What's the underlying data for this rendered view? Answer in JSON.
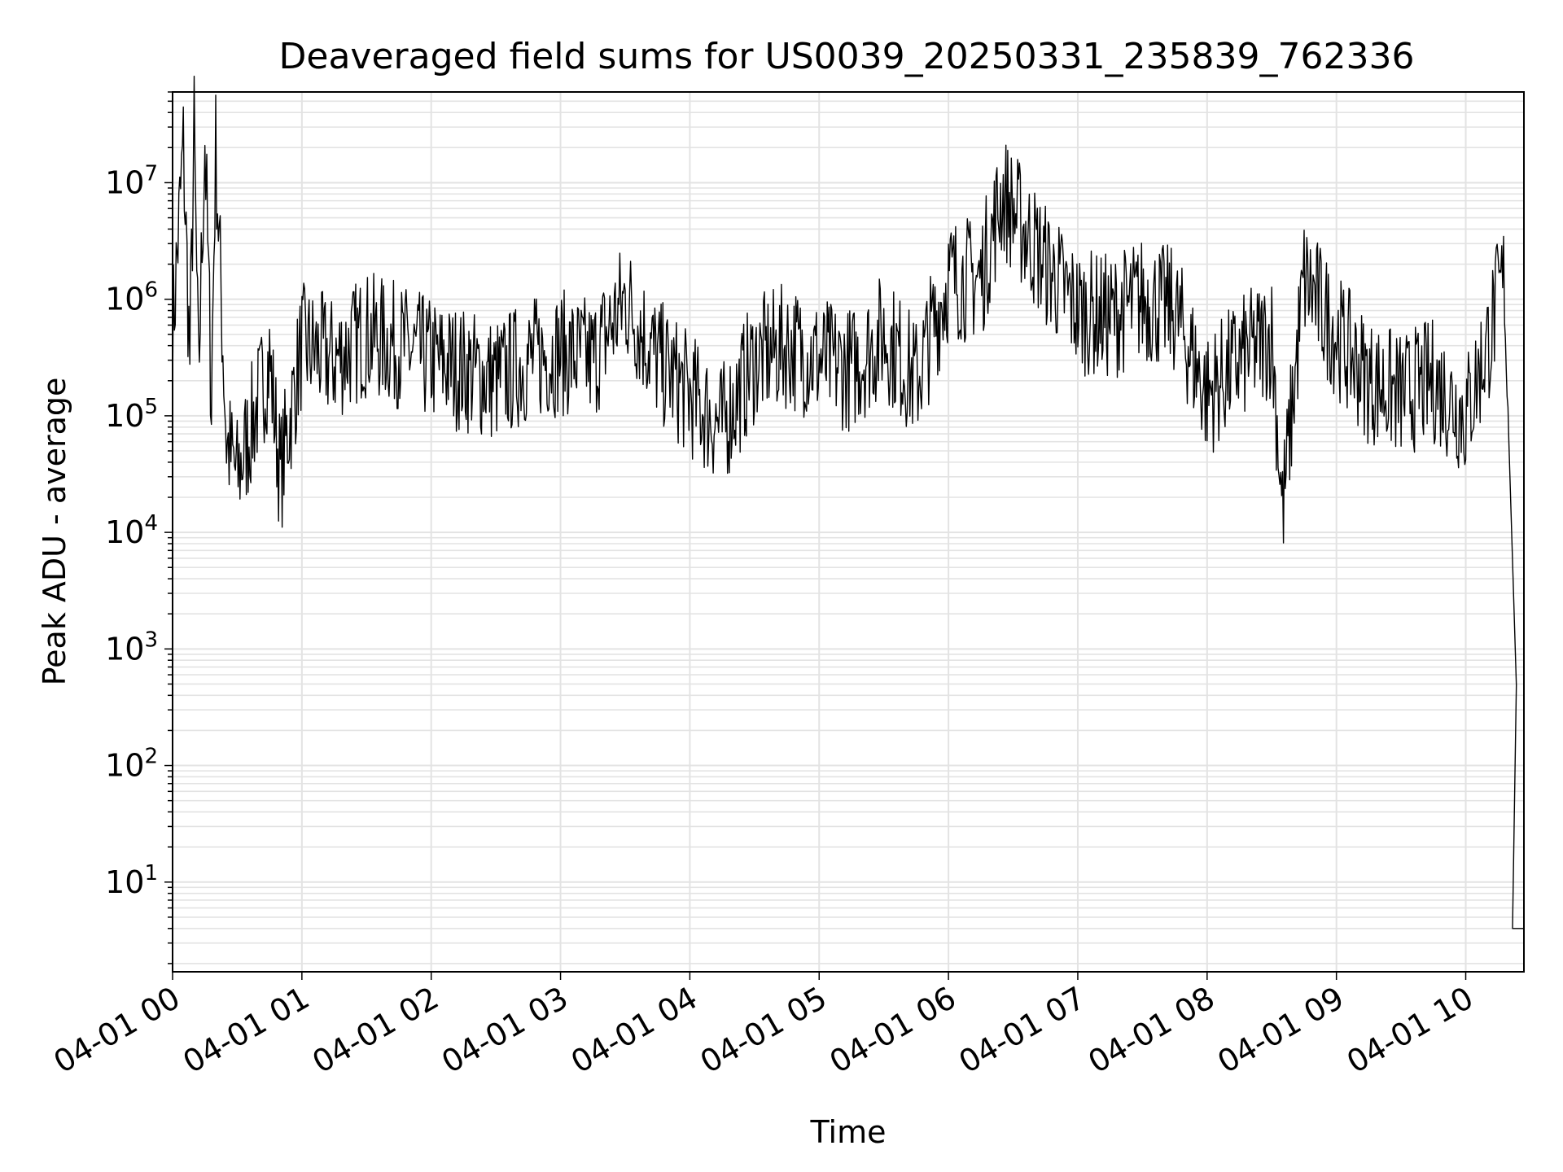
{
  "chart_data": {
    "type": "line",
    "title": "Deaveraged field sums for US0039_20250331_235839_762336",
    "xlabel": "Time",
    "ylabel": "Peak ADU - average",
    "yscale": "log",
    "ylim": [
      1.7,
      60000000
    ],
    "xlim": [
      "2025-04-01 00:00",
      "2025-04-01 10:27"
    ],
    "x_ticks": [
      "04-01 00",
      "04-01 01",
      "04-01 02",
      "04-01 03",
      "04-01 04",
      "04-01 05",
      "04-01 06",
      "04-01 07",
      "04-01 08",
      "04-01 09",
      "04-01 10"
    ],
    "y_ticks": [
      {
        "base": "10",
        "exp": "1",
        "value": 10
      },
      {
        "base": "10",
        "exp": "2",
        "value": 100
      },
      {
        "base": "10",
        "exp": "3",
        "value": 1000
      },
      {
        "base": "10",
        "exp": "4",
        "value": 10000
      },
      {
        "base": "10",
        "exp": "5",
        "value": 100000
      },
      {
        "base": "10",
        "exp": "6",
        "value": 1000000
      },
      {
        "base": "10",
        "exp": "7",
        "value": 10000000
      }
    ],
    "grid": true,
    "line_color": "#000000",
    "grid_color": "#e3e3e3",
    "series": [
      {
        "x": [
          "2025-04-01 00:00",
          "2025-04-01 00:05",
          "2025-04-01 00:08",
          "2025-04-01 00:10",
          "2025-04-01 00:12",
          "2025-04-01 00:15",
          "2025-04-01 00:18",
          "2025-04-01 00:20",
          "2025-04-01 00:25",
          "2025-04-01 00:30",
          "2025-04-01 00:38",
          "2025-04-01 00:45",
          "2025-04-01 00:50",
          "2025-04-01 01:00",
          "2025-04-01 01:15",
          "2025-04-01 01:30",
          "2025-04-01 01:45",
          "2025-04-01 02:00",
          "2025-04-01 02:15",
          "2025-04-01 02:30",
          "2025-04-01 02:45",
          "2025-04-01 03:00",
          "2025-04-01 03:15",
          "2025-04-01 03:30",
          "2025-04-01 03:45",
          "2025-04-01 04:00",
          "2025-04-01 04:15",
          "2025-04-01 04:30",
          "2025-04-01 04:45",
          "2025-04-01 05:00",
          "2025-04-01 05:15",
          "2025-04-01 05:30",
          "2025-04-01 05:45",
          "2025-04-01 06:00",
          "2025-04-01 06:15",
          "2025-04-01 06:25",
          "2025-04-01 06:45",
          "2025-04-01 07:00",
          "2025-04-01 07:15",
          "2025-04-01 07:30",
          "2025-04-01 07:45",
          "2025-04-01 08:00",
          "2025-04-01 08:15",
          "2025-04-01 08:30",
          "2025-04-01 08:35",
          "2025-04-01 08:45",
          "2025-04-01 09:00",
          "2025-04-01 09:15",
          "2025-04-01 09:30",
          "2025-04-01 09:45",
          "2025-04-01 10:00",
          "2025-04-01 10:10",
          "2025-04-01 10:15",
          "2025-04-01 10:18",
          "2025-04-01 10:20",
          "2025-04-01 10:27"
        ],
        "y": [
          500000,
          20000000,
          300000,
          28000000,
          200000,
          25000000,
          150000,
          20000000,
          60000,
          30000,
          100000,
          300000,
          30000,
          400000,
          300000,
          500000,
          400000,
          300000,
          250000,
          200000,
          300000,
          350000,
          300000,
          1000000,
          300000,
          150000,
          80000,
          300000,
          400000,
          300000,
          250000,
          500000,
          200000,
          1500000,
          1500000,
          8000000,
          2000000,
          800000,
          700000,
          1000000,
          800000,
          150000,
          300000,
          500000,
          15000,
          1500000,
          500000,
          200000,
          150000,
          200000,
          100000,
          400000,
          1000000,
          1500000,
          60000,
          4
        ]
      }
    ]
  }
}
